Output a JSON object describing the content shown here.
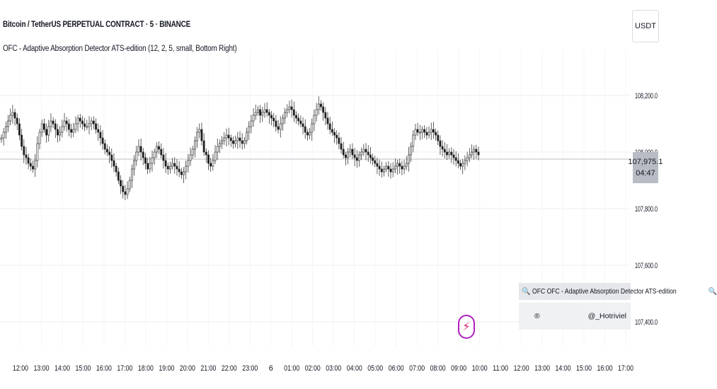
{
  "header": {
    "symbol_title": "Bitcoin / TetherUS PERPETUAL CONTRACT · 5 · BINANCE",
    "indicator_title": "OFC - Adaptive Absorption Detector ATS-edition (12, 2, 5, small, Bottom Right)",
    "currency": "USDT"
  },
  "price_axis": {
    "labels": [
      "108,200.0",
      "108,000.0",
      "107,800.0",
      "107,600.0",
      "107,400.0"
    ],
    "current_price": "107,975.1",
    "countdown": "04:47"
  },
  "time_axis": {
    "labels": [
      "12:00",
      "13:00",
      "14:00",
      "15:00",
      "16:00",
      "17:00",
      "18:00",
      "19:00",
      "20:00",
      "21:00",
      "22:00",
      "23:00",
      "6",
      "01:00",
      "02:00",
      "03:00",
      "04:00",
      "05:00",
      "06:00",
      "07:00",
      "08:00",
      "09:00",
      "10:00",
      "11:00",
      "12:00",
      "13:00",
      "14:00",
      "15:00",
      "16:00",
      "17:00"
    ]
  },
  "table_widget": {
    "header_icon_left": "search-icon",
    "header_text": "OFC  OFC - Adaptive Absorption Detector ATS-edition",
    "header_icon_right": "search-icon",
    "row_left": "®",
    "row_right": "@_Hotriviel"
  },
  "logo": {
    "symbol": "⚡"
  },
  "colors": {
    "candle": "#1f1f1f",
    "grid": "#eceef2",
    "price_line": "#d0d3d9",
    "badge_bg": "#b8bcc4",
    "logo_ring": "#b01fbf",
    "logo_bolt": "#d61e72"
  },
  "chart_data": {
    "type": "candlestick",
    "y_axis_ticks": [
      108200,
      108000,
      107800,
      107600,
      107400
    ],
    "current_price": 107975.1,
    "series": [
      {
        "values": [
          108050,
          108070,
          108090,
          108110,
          108130,
          108140,
          108120,
          108100,
          108060,
          108020,
          107990,
          107980,
          107960,
          107950,
          107940,
          107970,
          108030,
          108070,
          108100,
          108080,
          108060,
          108090,
          108110,
          108100,
          108080,
          108060,
          108070,
          108090,
          108110,
          108100,
          108080,
          108070,
          108080,
          108100,
          108120,
          108110,
          108100,
          108090,
          108090,
          108100,
          108110,
          108100,
          108080,
          108070,
          108050,
          108030,
          108010,
          108000,
          107990,
          107970,
          107950,
          107930,
          107900,
          107880,
          107860,
          107850,
          107870,
          107900,
          107940,
          107970,
          108000,
          108020,
          108000,
          107980,
          107960,
          107940,
          107960,
          107980,
          108000,
          108020,
          108010,
          107990,
          107970,
          107950,
          107940,
          107950,
          107960,
          107950,
          107940,
          107930,
          107920,
          107930,
          107950,
          107970,
          107990,
          108010,
          108040,
          108070,
          108080,
          108040,
          108000,
          107990,
          107960,
          107950,
          107970,
          108000,
          108020,
          108030,
          108040,
          108050,
          108060,
          108050,
          108040,
          108030,
          108040,
          108050,
          108040,
          108030,
          108040,
          108070,
          108090,
          108110,
          108130,
          108140,
          108150,
          108130,
          108140,
          108150,
          108140,
          108130,
          108120,
          108110,
          108090,
          108080,
          108100,
          108120,
          108140,
          108150,
          108160,
          108150,
          108130,
          108120,
          108110,
          108100,
          108090,
          108070,
          108060,
          108070,
          108100,
          108130,
          108150,
          108170,
          108160,
          108140,
          108120,
          108100,
          108080,
          108070,
          108060,
          108050,
          108030,
          108010,
          107990,
          107980,
          108000,
          108010,
          107990,
          107980,
          107970,
          107990,
          108000,
          108010,
          108000,
          107990,
          107980,
          107970,
          107960,
          107950,
          107940,
          107930,
          107940,
          107950,
          107940,
          107930,
          107940,
          107950,
          107960,
          107950,
          107940,
          107950,
          107960,
          107990,
          108020,
          108060,
          108080,
          108070,
          108070,
          108080,
          108070,
          108060,
          108070,
          108080,
          108070,
          108060,
          108040,
          108020,
          108010,
          108000,
          107990,
          108000,
          107990,
          107980,
          107970,
          107960,
          107950,
          107960,
          107970,
          107980,
          107990,
          108000,
          108010,
          108000,
          107990
        ]
      }
    ]
  }
}
